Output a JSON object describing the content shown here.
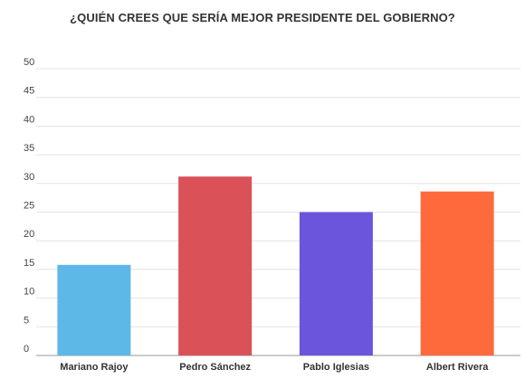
{
  "chart_data": {
    "type": "bar",
    "title": "¿QUIÉN CREES QUE SERÍA MEJOR PRESIDENTE DEL GOBIERNO?",
    "categories": [
      "Mariano Rajoy",
      "Pedro Sánchez",
      "Pablo Iglesias",
      "Albert Rivera"
    ],
    "values": [
      15.8,
      31.2,
      25.0,
      28.6
    ],
    "colors": [
      "#5DB8E8",
      "#DA5157",
      "#6C55DD",
      "#FF6A3C"
    ],
    "ylim": [
      0,
      50
    ],
    "yticks": [
      "0",
      "5",
      "10",
      "15",
      "20",
      "25",
      "30",
      "35",
      "40",
      "45",
      "50"
    ],
    "xlabel": "",
    "ylabel": "",
    "grid": true,
    "legend": "none"
  }
}
